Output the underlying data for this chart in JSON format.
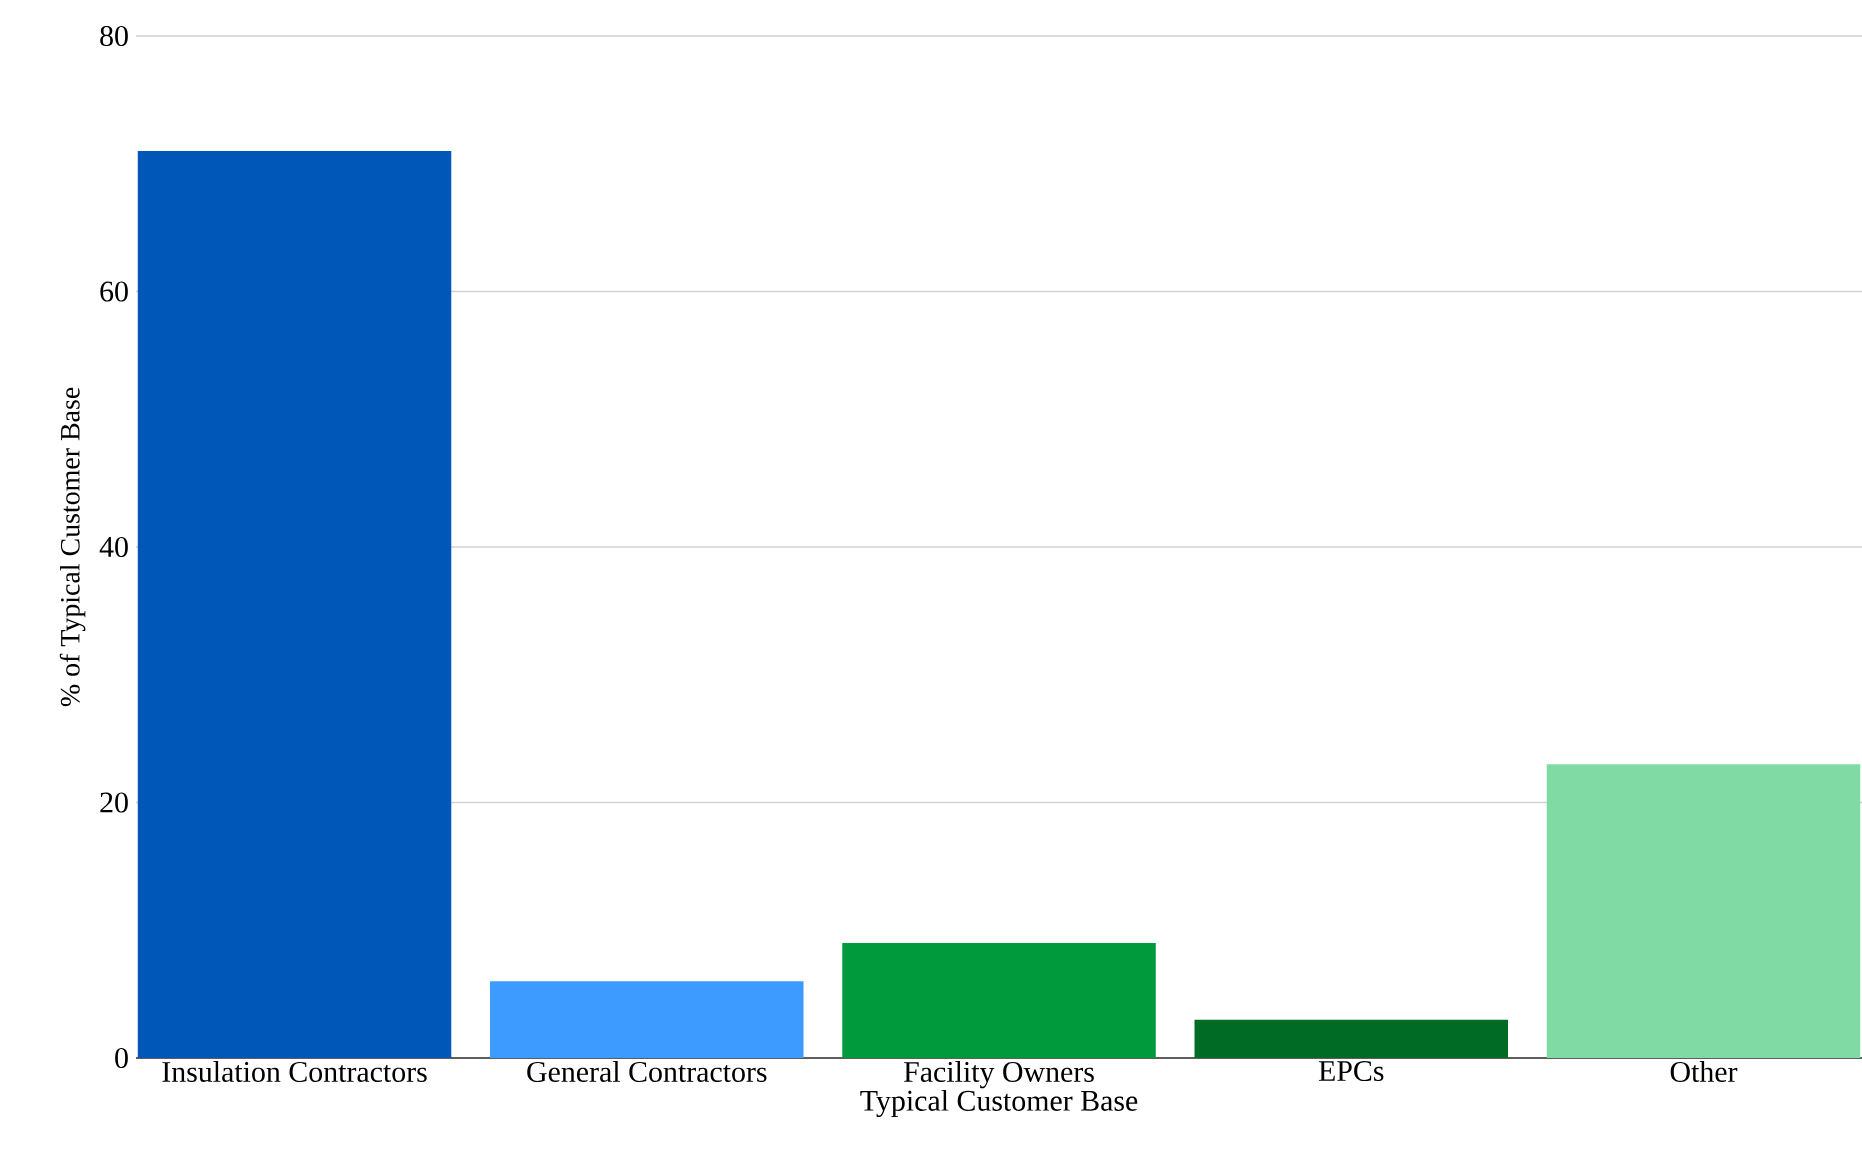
{
  "chart_data": {
    "type": "bar",
    "xlabel": "Typical Customer Base",
    "ylabel": "% of Typical Customer Base",
    "categories": [
      "Insulation Contractors",
      "General Contractors",
      "Facility Owners",
      "EPCs",
      "Other"
    ],
    "values": [
      71,
      6,
      9,
      3,
      23
    ],
    "colors": [
      "#0057b8",
      "#3d9bff",
      "#009a3c",
      "#006b24",
      "#7fdba3"
    ],
    "ylim": [
      0,
      80
    ],
    "yticks": [
      0,
      20,
      40,
      60,
      80
    ],
    "grid": "y"
  }
}
